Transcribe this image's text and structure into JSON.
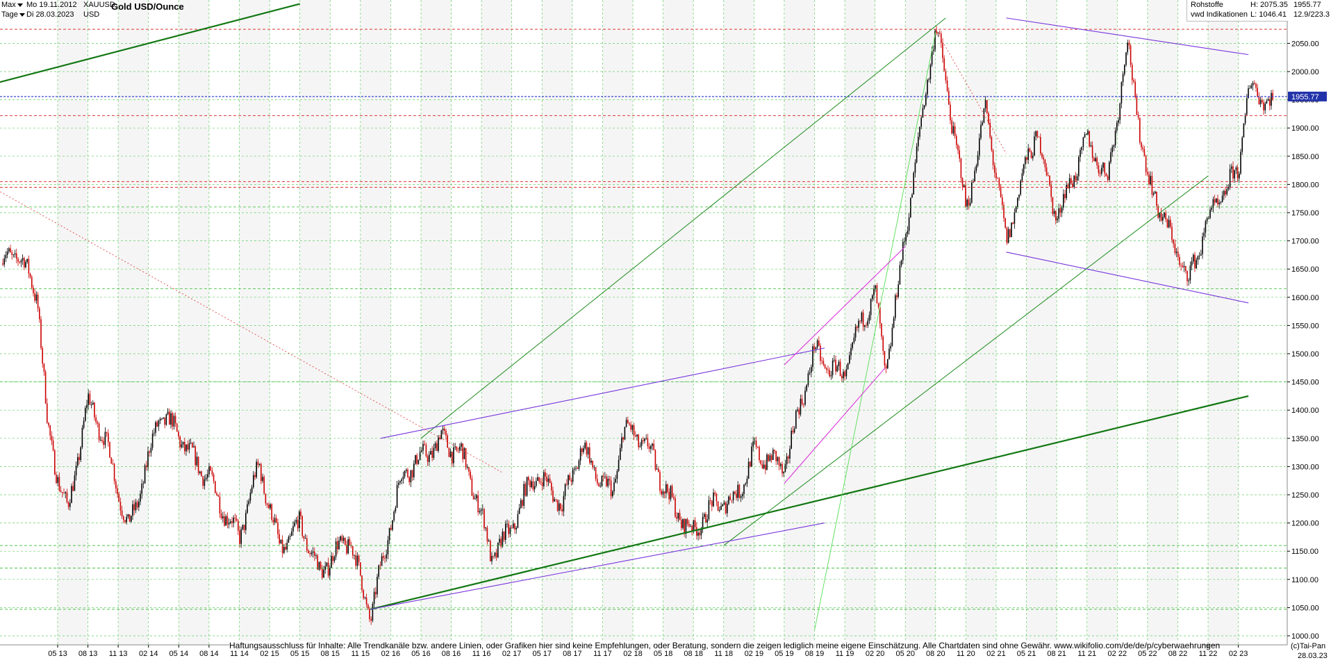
{
  "header": {
    "range_label": "Max",
    "interval_label": "Tage",
    "start_date": "Mo 19.11.2012",
    "end_date": "Di 28.03.2023",
    "symbol": "XAUUSD",
    "currency": "USD",
    "title": "Gold USD/Ounce",
    "category": "Rohstoffe",
    "source": "vwd Indikationen",
    "high_label": "H: 2075.35",
    "low_label": "L: 1046.41",
    "last_price": "1955.77",
    "last_update": "12.9/223.3"
  },
  "footer": {
    "disclaimer": "Haftungsausschluss für Inhalte: Alle Trendkanäle bzw. andere Linien, oder Grafiken hier sind keine Empfehlungen, oder Beratung, sondern die zeigen lediglich meine eigene Einschätzung. Alle Chartdaten sind ohne Gewähr.  www.wikifolio.com/de/de/p/cyberwaehrungen",
    "credit": "(c)Tai-Pan",
    "end_date": "28.03.23"
  },
  "colors": {
    "candle": "#000000",
    "candle_down": "#cc0000",
    "grid": "#66cc66",
    "trend_green": "#1a8a1a",
    "trend_purple": "#7733dd",
    "trend_magenta": "#dd33dd",
    "support_red": "#dd3333",
    "last_price_line": "#2233cc",
    "last_price_box": "#2233aa"
  },
  "chart_data": {
    "type": "candlestick",
    "title": "Gold USD/Ounce",
    "xlabel": "",
    "ylabel": "",
    "ylim": [
      990,
      2120
    ],
    "y_ticks": [
      1000,
      1050,
      1100,
      1150,
      1200,
      1250,
      1300,
      1350,
      1400,
      1450,
      1500,
      1550,
      1600,
      1650,
      1700,
      1750,
      1800,
      1850,
      1900,
      1950,
      2000,
      2050
    ],
    "y_tick_labels": [
      "1000.00",
      "1050.00",
      "1100.00",
      "1150.00",
      "1200.00",
      "1250.00",
      "1300.00",
      "1350.00",
      "1400.00",
      "1450.00",
      "1500.00",
      "1550.00",
      "1600.00",
      "1650.00",
      "1700.00",
      "1750.00",
      "1800.00",
      "1850.00",
      "1900.00",
      "1950.00",
      "2000.00",
      "2050.00"
    ],
    "x_tick_labels": [
      "05 13",
      "08 13",
      "11 13",
      "02 14",
      "05 14",
      "08 14",
      "11 14",
      "02 15",
      "05 15",
      "08 15",
      "11 15",
      "02 16",
      "05 16",
      "08 16",
      "11 16",
      "02 17",
      "05 17",
      "08 17",
      "11 17",
      "02 18",
      "05 18",
      "08 18",
      "11 18",
      "02 19",
      "05 19",
      "08 19",
      "11 19",
      "02 20",
      "05 20",
      "08 20",
      "11 20",
      "02 21",
      "05 21",
      "08 21",
      "11 21",
      "02 22",
      "05 22",
      "08 22",
      "11 22",
      "02 23"
    ],
    "last_price": 1955.77,
    "high": 2075.35,
    "low": 1046.41,
    "price_path": [
      [
        "2013-01",
        1660
      ],
      [
        "2013-03",
        1600
      ],
      [
        "2013-04",
        1380
      ],
      [
        "2013-06",
        1230
      ],
      [
        "2013-08",
        1400
      ],
      [
        "2013-10",
        1320
      ],
      [
        "2013-12",
        1205
      ],
      [
        "2014-03",
        1380
      ],
      [
        "2014-06",
        1320
      ],
      [
        "2014-08",
        1300
      ],
      [
        "2014-11",
        1160
      ],
      [
        "2015-01",
        1290
      ],
      [
        "2015-03",
        1170
      ],
      [
        "2015-05",
        1210
      ],
      [
        "2015-07",
        1090
      ],
      [
        "2015-10",
        1180
      ],
      [
        "2015-12",
        1050
      ],
      [
        "2016-03",
        1260
      ],
      [
        "2016-07",
        1370
      ],
      [
        "2016-09",
        1320
      ],
      [
        "2016-12",
        1130
      ],
      [
        "2017-04",
        1290
      ],
      [
        "2017-07",
        1215
      ],
      [
        "2017-09",
        1350
      ],
      [
        "2017-12",
        1250
      ],
      [
        "2018-01",
        1350
      ],
      [
        "2018-04",
        1320
      ],
      [
        "2018-08",
        1175
      ],
      [
        "2018-12",
        1250
      ],
      [
        "2019-02",
        1340
      ],
      [
        "2019-05",
        1275
      ],
      [
        "2019-08",
        1520
      ],
      [
        "2019-11",
        1460
      ],
      [
        "2020-02",
        1600
      ],
      [
        "2020-03",
        1470
      ],
      [
        "2020-05",
        1730
      ],
      [
        "2020-08",
        2065
      ],
      [
        "2020-11",
        1770
      ],
      [
        "2021-01",
        1950
      ],
      [
        "2021-03",
        1680
      ],
      [
        "2021-06",
        1900
      ],
      [
        "2021-08",
        1760
      ],
      [
        "2021-11",
        1860
      ],
      [
        "2022-01",
        1800
      ],
      [
        "2022-03",
        2070
      ],
      [
        "2022-05",
        1810
      ],
      [
        "2022-07",
        1700
      ],
      [
        "2022-09",
        1630
      ],
      [
        "2022-11",
        1760
      ],
      [
        "2023-02",
        1810
      ],
      [
        "2023-03",
        1955
      ]
    ],
    "horizontal_levels": [
      {
        "value": 2075,
        "style": "red-dashed"
      },
      {
        "value": 1955.77,
        "style": "blue-dashed"
      },
      {
        "value": 1922,
        "style": "red-dashed"
      },
      {
        "value": 1805,
        "style": "red-dashed"
      },
      {
        "value": 1795,
        "style": "red-dashed"
      },
      {
        "value": 1760,
        "style": "green-dashed"
      },
      {
        "value": 1615,
        "style": "green-dashed"
      },
      {
        "value": 1450,
        "style": "green-dashed"
      },
      {
        "value": 1160,
        "style": "green-dashed"
      },
      {
        "value": 1120,
        "style": "green-dashed"
      },
      {
        "value": 1047,
        "style": "green-dashed"
      }
    ],
    "trend_lines": [
      {
        "from": [
          "2012-11",
          1980
        ],
        "to": [
          "2015-05",
          2120
        ],
        "color": "green-thick"
      },
      {
        "from": [
          "2015-12",
          1047
        ],
        "to": [
          "2023-03",
          1425
        ],
        "color": "green-thick"
      },
      {
        "from": [
          "2016-05",
          1350
        ],
        "to": [
          "2020-09",
          2095
        ],
        "color": "green"
      },
      {
        "from": [
          "2018-11",
          1160
        ],
        "to": [
          "2022-11",
          1815
        ],
        "color": "green"
      },
      {
        "from": [
          "2019-08",
          1010
        ],
        "to": [
          "2020-08",
          2070
        ],
        "color": "light-green"
      },
      {
        "from": [
          "2016-01",
          1350
        ],
        "to": [
          "2019-09",
          1510
        ],
        "color": "purple"
      },
      {
        "from": [
          "2015-12",
          1047
        ],
        "to": [
          "2019-09",
          1200
        ],
        "color": "purple"
      },
      {
        "from": [
          "2021-03",
          2095
        ],
        "to": [
          "2023-03",
          2030
        ],
        "color": "purple"
      },
      {
        "from": [
          "2021-03",
          1680
        ],
        "to": [
          "2023-03",
          1590
        ],
        "color": "purple"
      },
      {
        "from": [
          "2019-05",
          1270
        ],
        "to": [
          "2020-03",
          1475
        ],
        "color": "magenta"
      },
      {
        "from": [
          "2019-05",
          1480
        ],
        "to": [
          "2020-05",
          1690
        ],
        "color": "magenta"
      },
      {
        "from": [
          "2012-11",
          1790
        ],
        "to": [
          "2017-01",
          1290
        ],
        "color": "red-dotted"
      },
      {
        "from": [
          "2020-08",
          2075
        ],
        "to": [
          "2021-03",
          1855
        ],
        "color": "red-dotted"
      }
    ]
  }
}
